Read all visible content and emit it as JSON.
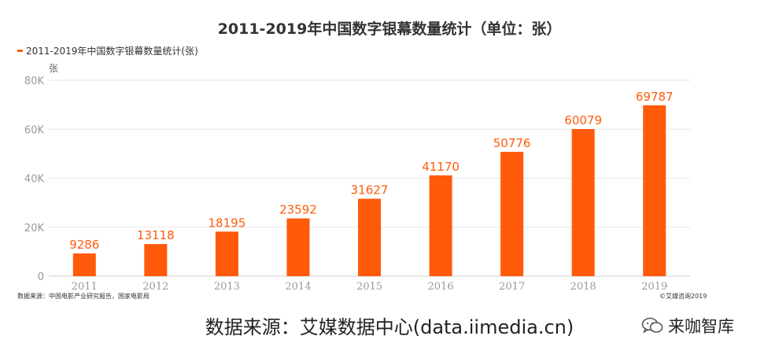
{
  "title": "2011-2019年中国数字银幕数量统计（单位：张）",
  "source_note": "数据来源：中国电影产业研究报告，国家电影局",
  "copyright": "©艾媒咨询2019",
  "footer": "数据来源：艾媒数据中心(data.iimedia.cn)",
  "brand": {
    "text": "来咖智库",
    "icon": "wechat-icon"
  },
  "colors": {
    "bar": "#FF5A0A",
    "label": "#FF5A0A",
    "grid": "#e6e6e6",
    "axis": "#999999"
  },
  "chart_data": {
    "type": "bar",
    "categories": [
      "2011",
      "2012",
      "2013",
      "2014",
      "2015",
      "2016",
      "2017",
      "2018",
      "2019"
    ],
    "series": [
      {
        "name": "2011-2019年中国数字银幕数量统计(张)",
        "values": [
          9286,
          13118,
          18195,
          23592,
          31627,
          41170,
          50776,
          60079,
          69787
        ]
      }
    ],
    "ylabel": "张",
    "ylim": [
      0,
      80000
    ],
    "yticks": [
      "0",
      "20K",
      "40K",
      "60K",
      "80K"
    ],
    "grid": true,
    "legend_position": "top-left"
  }
}
